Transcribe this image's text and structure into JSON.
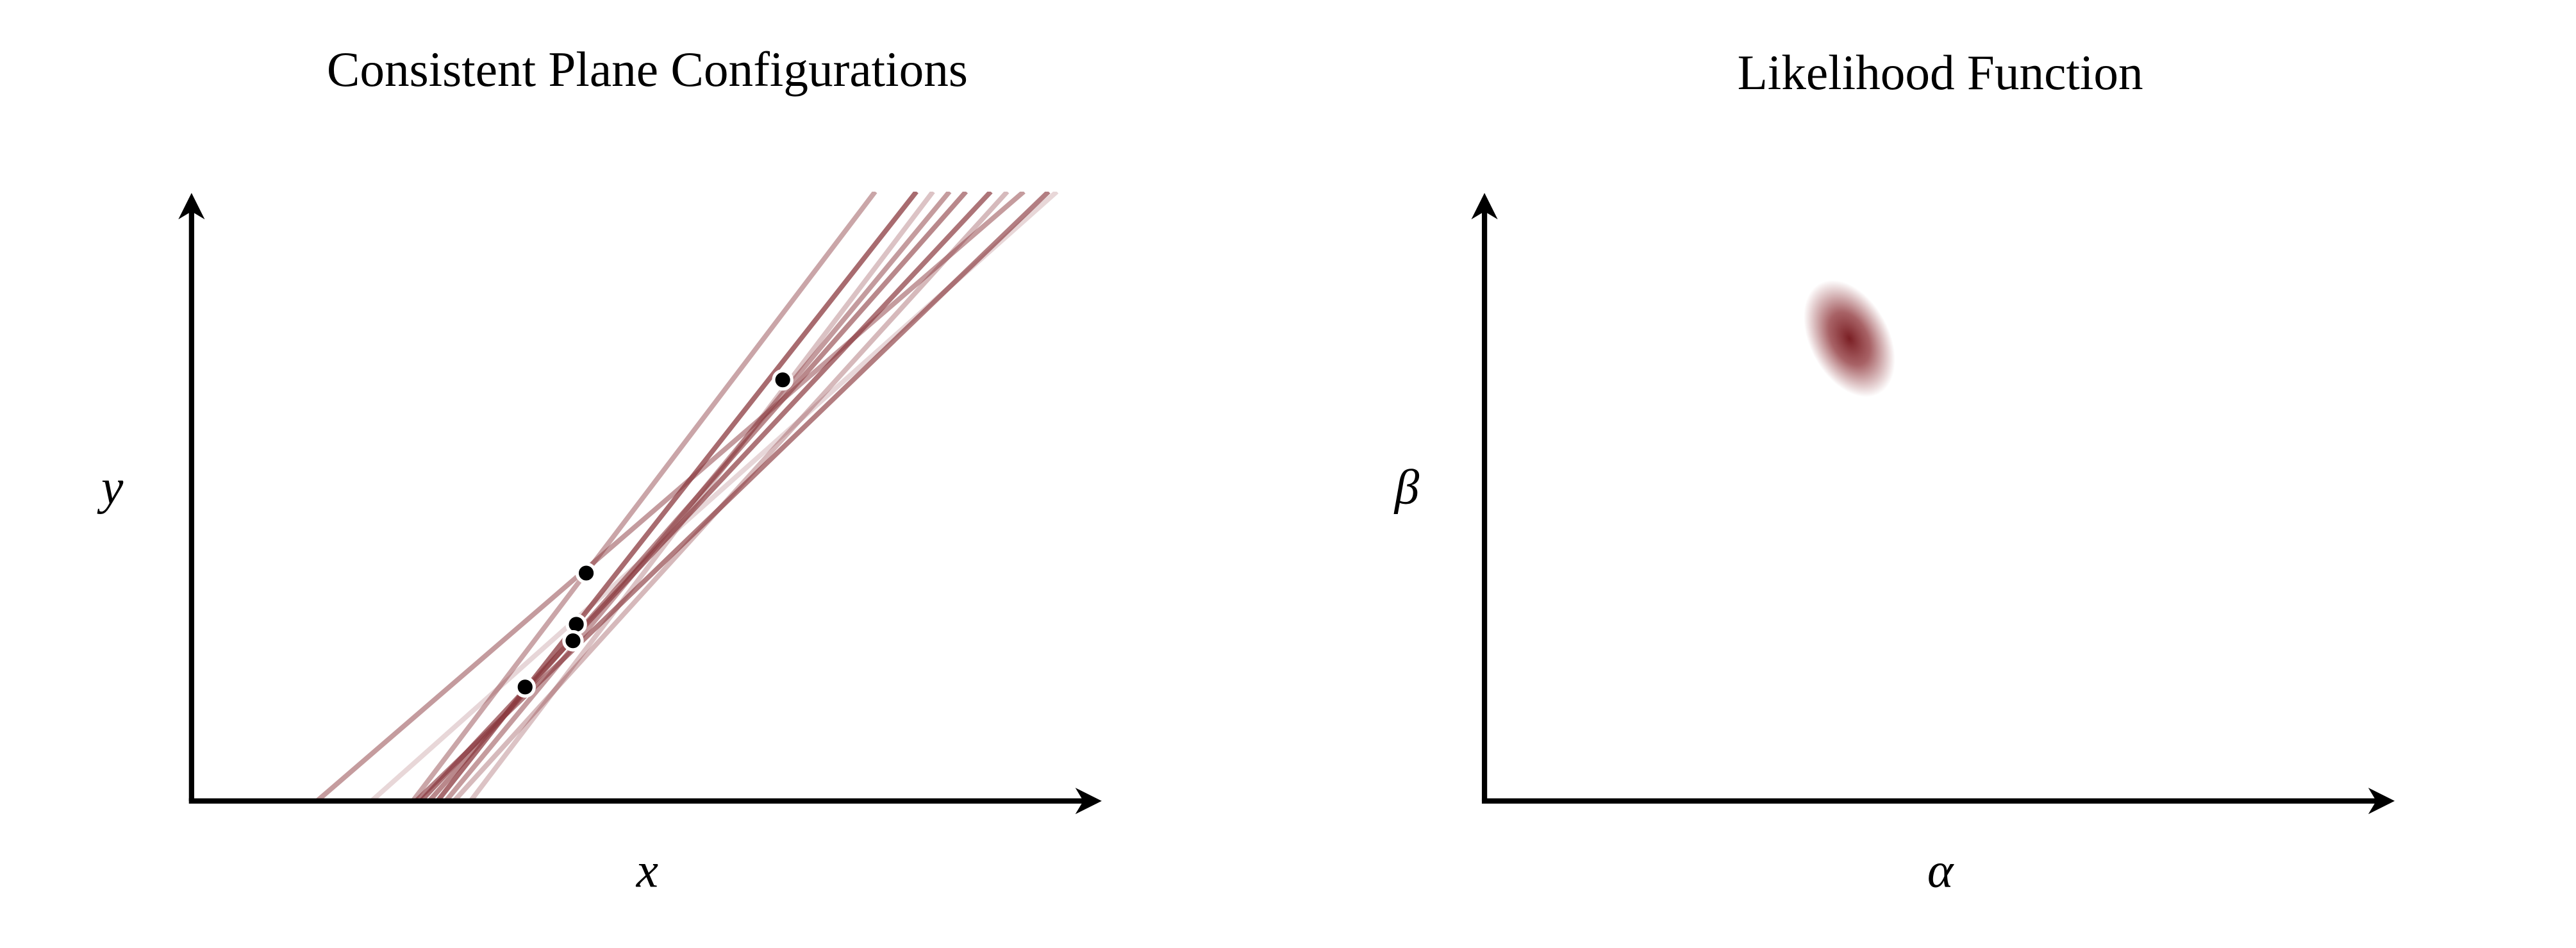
{
  "left_panel": {
    "title": "Consistent Plane Configurations",
    "x_label": "x",
    "y_label": "y"
  },
  "right_panel": {
    "title": "Likelihood Function",
    "x_label": "α",
    "y_label": "β"
  }
}
